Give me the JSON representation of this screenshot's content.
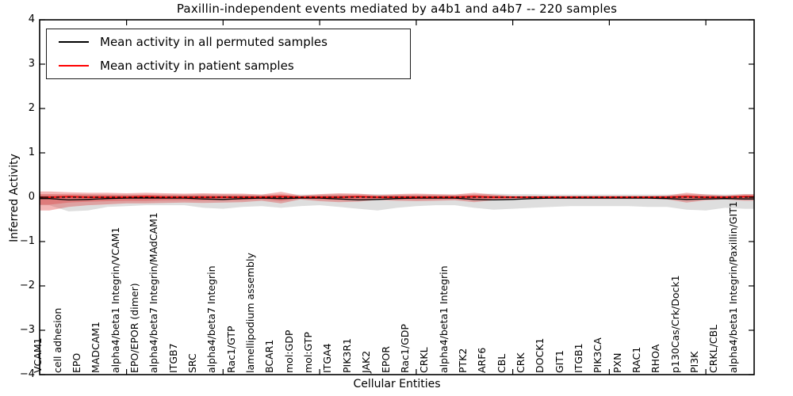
{
  "title": "Paxillin-independent events mediated by a4b1 and a4b7 -- 220 samples",
  "axes": {
    "ylabel": "Inferred Activity",
    "xlabel": "Cellular Entities"
  },
  "legend": {
    "items": [
      {
        "label": "Mean activity in all permuted samples",
        "color": "#000000"
      },
      {
        "label": "Mean activity in patient samples",
        "color": "#ff0000"
      }
    ]
  },
  "chart_data": {
    "type": "line",
    "title": "Paxillin-independent events mediated by a4b1 and a4b7 -- 220 samples",
    "xlabel": "Cellular Entities",
    "ylabel": "Inferred Activity",
    "ylim": [
      -4,
      4
    ],
    "yticks": [
      4,
      3,
      2,
      1,
      0,
      -1,
      -2,
      -3,
      -4
    ],
    "xtick_mark_indices": [
      4,
      9,
      14,
      19,
      24,
      29,
      34
    ],
    "grid": false,
    "legend_position": "upper left",
    "categories": [
      "VCAM1",
      "cell adhesion",
      "EPO",
      "MADCAM1",
      "alpha4/beta1 Integrin/VCAM1",
      "EPO/EPOR (dimer)",
      "alpha4/beta7 Integrin/MAdCAM1",
      "ITGB7",
      "SRC",
      "alpha4/beta7 Integrin",
      "Rac1/GTP",
      "lamellipodium assembly",
      "BCAR1",
      "mol:GDP",
      "mol:GTP",
      "ITGA4",
      "PIK3R1",
      "JAK2",
      "EPOR",
      "Rac1/GDP",
      "CRKL",
      "alpha4/beta1 Integrin",
      "PTK2",
      "ARF6",
      "CBL",
      "CRK",
      "DOCK1",
      "GIT1",
      "ITGB1",
      "PIK3CA",
      "PXN",
      "RAC1",
      "RHOA",
      "p130Cas/Crk/Dock1",
      "PI3K",
      "CRKL/CBL",
      "alpha4/beta1 Integrin/Paxillin/GIT1"
    ],
    "series": [
      {
        "name": "Mean activity in all permuted samples",
        "color": "#000000",
        "style": "solid",
        "values": [
          -0.03,
          -0.06,
          -0.05,
          -0.03,
          -0.02,
          -0.02,
          -0.02,
          -0.02,
          -0.04,
          -0.05,
          -0.03,
          -0.02,
          -0.03,
          -0.02,
          -0.02,
          -0.04,
          -0.06,
          -0.05,
          -0.03,
          -0.02,
          -0.02,
          -0.02,
          -0.05,
          -0.06,
          -0.05,
          -0.03,
          -0.02,
          -0.02,
          -0.02,
          -0.02,
          -0.02,
          -0.02,
          -0.03,
          -0.05,
          -0.04,
          -0.03,
          -0.04
        ]
      },
      {
        "name": "Mean activity in patient samples",
        "color": "#ff0000",
        "style": "solid",
        "values": [
          0,
          0.01,
          0,
          0,
          0,
          0.01,
          0,
          0,
          0,
          0,
          0,
          0,
          0.01,
          0,
          0,
          0,
          0.01,
          0,
          0,
          0,
          0,
          0,
          0.01,
          0,
          0,
          0,
          0,
          0,
          0,
          0,
          0,
          0,
          0,
          0.01,
          0,
          0,
          0.01
        ]
      }
    ],
    "bands": [
      {
        "name": "permuted-samples-range",
        "color": "#000000",
        "opacity": 0.13,
        "upper": [
          0.06,
          0.07,
          0.07,
          0.06,
          0.06,
          0.06,
          0.06,
          0.06,
          0.07,
          0.07,
          0.06,
          0.06,
          0.06,
          0.06,
          0.06,
          0.07,
          0.07,
          0.07,
          0.06,
          0.06,
          0.06,
          0.06,
          0.07,
          0.08,
          0.07,
          0.07,
          0.06,
          0.06,
          0.06,
          0.06,
          0.06,
          0.06,
          0.06,
          0.07,
          0.07,
          0.06,
          0.07
        ],
        "lower": [
          -0.18,
          -0.32,
          -0.3,
          -0.22,
          -0.2,
          -0.18,
          -0.18,
          -0.18,
          -0.24,
          -0.26,
          -0.22,
          -0.2,
          -0.24,
          -0.2,
          -0.18,
          -0.22,
          -0.26,
          -0.3,
          -0.24,
          -0.2,
          -0.18,
          -0.18,
          -0.24,
          -0.28,
          -0.26,
          -0.24,
          -0.22,
          -0.2,
          -0.2,
          -0.2,
          -0.2,
          -0.22,
          -0.22,
          -0.28,
          -0.3,
          -0.24,
          -0.26
        ]
      },
      {
        "name": "patient-samples-range-outer",
        "color": "#e04040",
        "opacity": 0.38,
        "upper": [
          0.13,
          0.11,
          0.1,
          0.1,
          0.09,
          0.1,
          0.09,
          0.08,
          0.09,
          0.08,
          0.08,
          0.06,
          0.12,
          0.04,
          0.07,
          0.09,
          0.08,
          0.05,
          0.07,
          0.08,
          0.07,
          0.06,
          0.1,
          0.06,
          0.03,
          0.03,
          0.03,
          0.03,
          0.03,
          0.03,
          0.03,
          0.03,
          0.04,
          0.1,
          0.06,
          0.04,
          0.07
        ],
        "lower": [
          -0.3,
          -0.22,
          -0.18,
          -0.16,
          -0.14,
          -0.14,
          -0.13,
          -0.12,
          -0.13,
          -0.12,
          -0.11,
          -0.08,
          -0.14,
          -0.05,
          -0.09,
          -0.11,
          -0.1,
          -0.06,
          -0.08,
          -0.09,
          -0.08,
          -0.07,
          -0.11,
          -0.07,
          -0.04,
          -0.04,
          -0.04,
          -0.04,
          -0.04,
          -0.04,
          -0.04,
          -0.04,
          -0.05,
          -0.12,
          -0.07,
          -0.05,
          -0.08
        ]
      },
      {
        "name": "patient-samples-range-inner",
        "color": "#e04040",
        "opacity": 0.38,
        "upper": [
          0.07,
          0.06,
          0.055,
          0.055,
          0.05,
          0.055,
          0.05,
          0.045,
          0.05,
          0.045,
          0.045,
          0.035,
          0.065,
          0.02,
          0.04,
          0.05,
          0.045,
          0.03,
          0.04,
          0.045,
          0.04,
          0.035,
          0.055,
          0.035,
          0.015,
          0.015,
          0.015,
          0.015,
          0.015,
          0.015,
          0.015,
          0.015,
          0.02,
          0.055,
          0.035,
          0.02,
          0.04
        ],
        "lower": [
          -0.17,
          -0.12,
          -0.1,
          -0.09,
          -0.08,
          -0.08,
          -0.07,
          -0.065,
          -0.07,
          -0.065,
          -0.06,
          -0.045,
          -0.08,
          -0.03,
          -0.05,
          -0.06,
          -0.055,
          -0.035,
          -0.045,
          -0.05,
          -0.045,
          -0.04,
          -0.06,
          -0.04,
          -0.02,
          -0.02,
          -0.02,
          -0.02,
          -0.02,
          -0.02,
          -0.02,
          -0.02,
          -0.03,
          -0.065,
          -0.04,
          -0.03,
          -0.045
        ]
      }
    ],
    "reference_line": {
      "y": 0,
      "style": "dashed",
      "color": "#000000"
    }
  }
}
